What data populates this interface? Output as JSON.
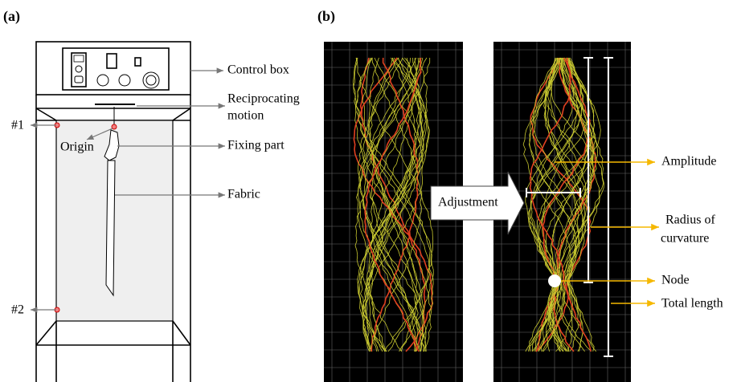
{
  "panel_a": {
    "label": "(a)",
    "control_box": "Control box",
    "reciprocating_motion": [
      "Reciprocating",
      "motion"
    ],
    "marker_1": "#1",
    "marker_2": "#2",
    "origin": "Origin",
    "fixing_part": "Fixing part",
    "fabric": "Fabric"
  },
  "panel_b": {
    "label": "(b)",
    "adjustment": "Adjustment",
    "amplitude": "Amplitude",
    "radius_of_curvature": [
      "Radius of",
      "curvature"
    ],
    "node": "Node",
    "total_length": "Total length"
  }
}
